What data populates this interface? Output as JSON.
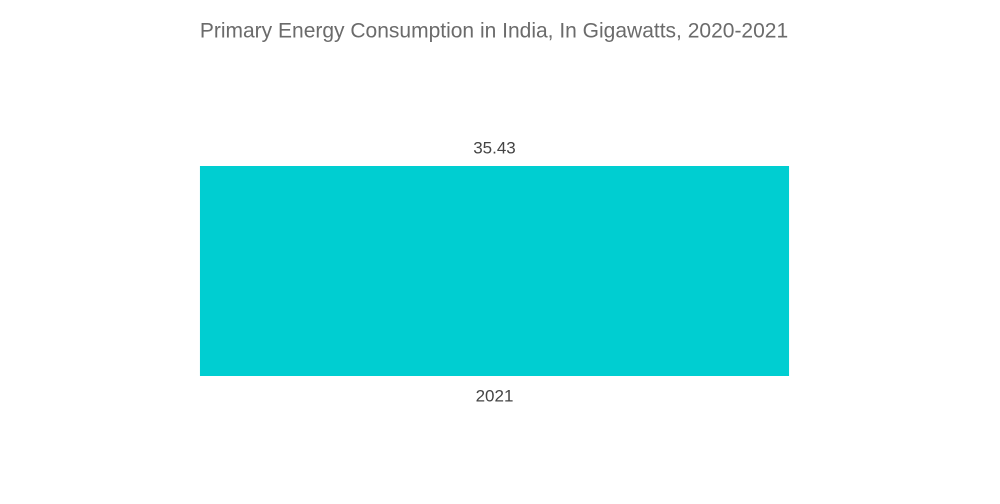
{
  "chart_data": {
    "type": "bar",
    "title": "Primary Energy Consumption in India, In Gigawatts, 2020-2021",
    "categories": [
      "2021"
    ],
    "values": [
      35.43
    ],
    "color": "#00ced1"
  }
}
